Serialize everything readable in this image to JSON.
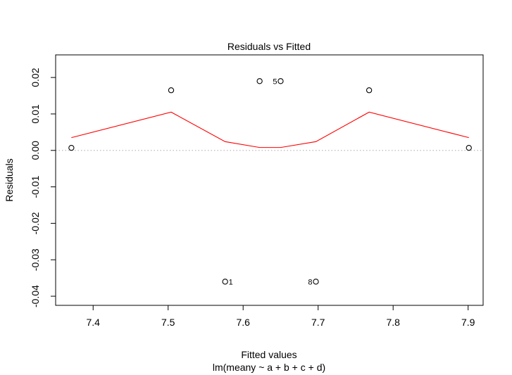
{
  "chart_data": {
    "type": "scatter",
    "title": "Residuals vs Fitted",
    "xlabel": "Fitted values",
    "subtitle": "lm(meany ~ a + b + c + d)",
    "ylabel": "Residuals",
    "xlim": [
      7.35,
      7.92
    ],
    "ylim": [
      -0.0425,
      0.0262
    ],
    "x_ticks": [
      7.4,
      7.5,
      7.6,
      7.7,
      7.8,
      7.9
    ],
    "x_tick_labels": [
      "7.4",
      "7.5",
      "7.6",
      "7.7",
      "7.8",
      "7.9"
    ],
    "y_ticks": [
      -0.04,
      -0.03,
      -0.02,
      -0.01,
      0.0,
      0.01,
      0.02
    ],
    "y_tick_labels": [
      "-0.04",
      "-0.03",
      "-0.02",
      "-0.01",
      "0.00",
      "0.01",
      "0.02"
    ],
    "points": [
      {
        "x": 7.371,
        "y": 0.0007,
        "label": ""
      },
      {
        "x": 7.504,
        "y": 0.0165,
        "label": ""
      },
      {
        "x": 7.576,
        "y": -0.036,
        "label": "1"
      },
      {
        "x": 7.622,
        "y": 0.019,
        "label": ""
      },
      {
        "x": 7.65,
        "y": 0.019,
        "label": "5"
      },
      {
        "x": 7.697,
        "y": -0.036,
        "label": "8"
      },
      {
        "x": 7.768,
        "y": 0.0165,
        "label": ""
      },
      {
        "x": 7.901,
        "y": 0.0007,
        "label": ""
      }
    ],
    "smooth_line": {
      "color": "#ff0000",
      "x": [
        7.371,
        7.504,
        7.576,
        7.622,
        7.65,
        7.697,
        7.768,
        7.901
      ],
      "y": [
        0.0035,
        0.0105,
        0.0024,
        0.0008,
        0.0008,
        0.0024,
        0.0105,
        0.0035
      ]
    },
    "reference_line": {
      "y": 0,
      "style": "dotted",
      "color": "#bbbbbb"
    },
    "grid": false
  }
}
